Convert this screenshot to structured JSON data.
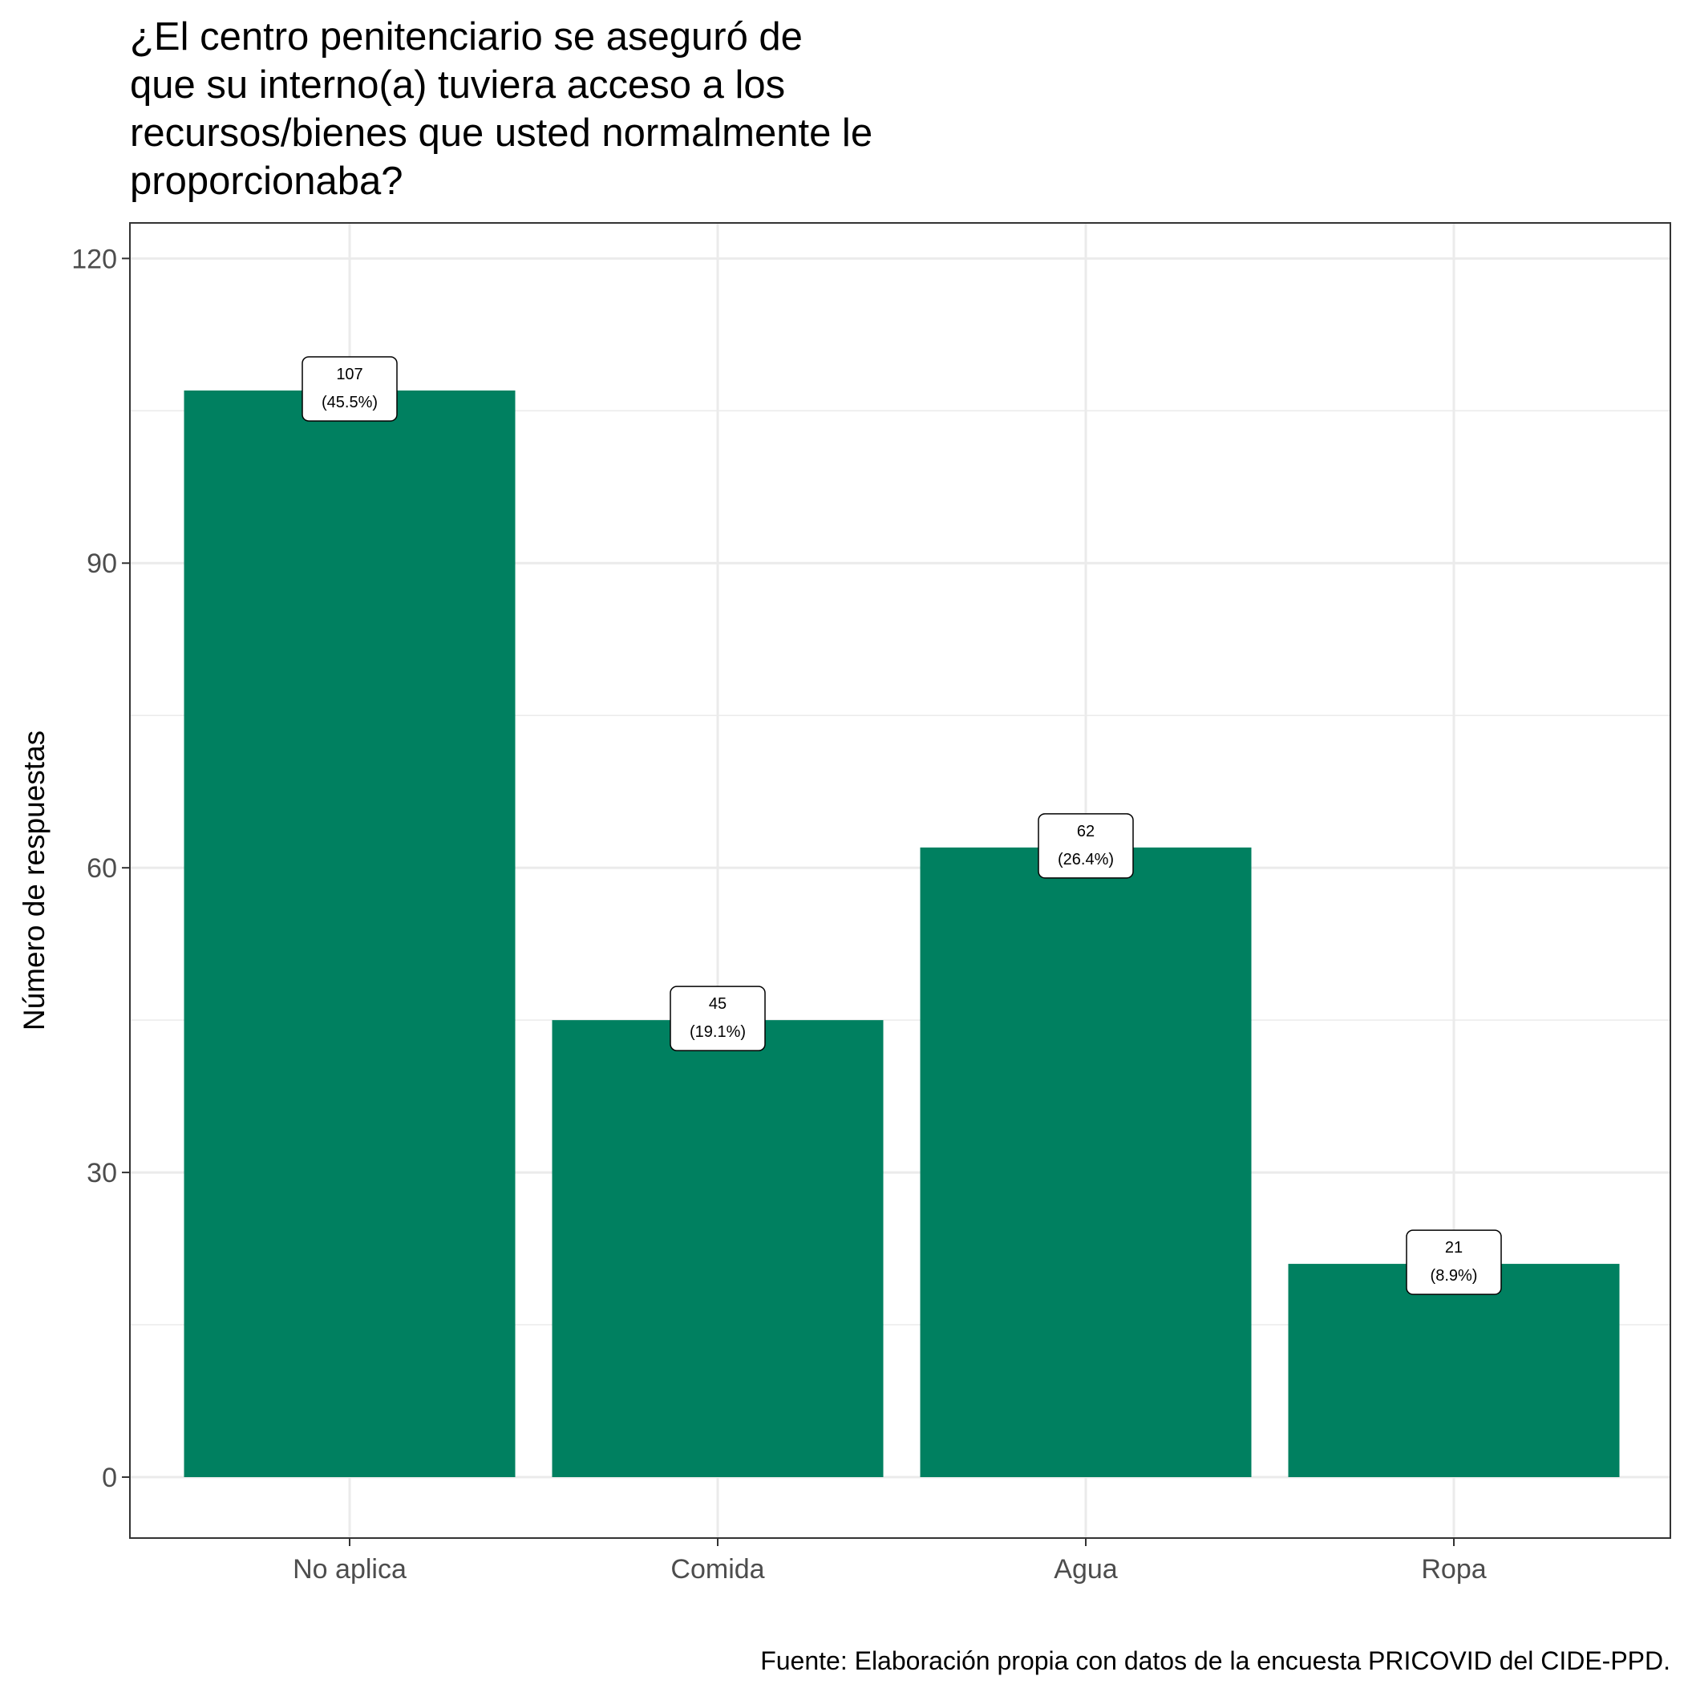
{
  "chart_data": {
    "type": "bar",
    "title_lines": [
      "¿El centro penitenciario se aseguró de",
      "que su interno(a) tuviera acceso a los",
      "recursos/bienes que usted normalmente le",
      "proporcionaba?"
    ],
    "xlabel": "",
    "ylabel": "Número de respuestas",
    "caption": "Fuente: Elaboración propia con datos de la encuesta PRICOVID del CIDE-PPD.",
    "categories": [
      "No aplica",
      "Comida",
      "Agua",
      "Ropa"
    ],
    "values": [
      107,
      45,
      62,
      21
    ],
    "value_labels": [
      "107",
      "45",
      "62",
      "21"
    ],
    "percent_labels": [
      "(45.5%)",
      "(19.1%)",
      "(26.4%)",
      "(8.9%)"
    ],
    "y_ticks": [
      0,
      30,
      60,
      90,
      120
    ],
    "y_tick_labels": [
      "0",
      "30",
      "60",
      "90",
      "120"
    ],
    "ylim": [
      -6,
      123.5
    ],
    "grid": true,
    "bar_color": "#008060"
  }
}
